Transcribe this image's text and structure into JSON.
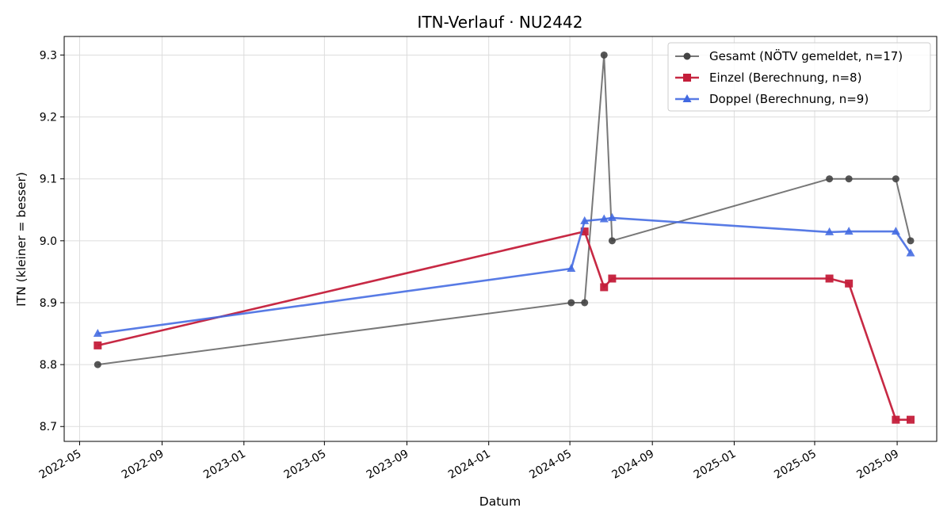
{
  "chart_data": {
    "type": "line",
    "title": "ITN-Verlauf · NU2442",
    "xlabel": "Datum",
    "ylabel": "ITN  (kleiner = besser)",
    "xlim": [
      "2022-04-08",
      "2025-10-30"
    ],
    "ylim": [
      8.676,
      9.33
    ],
    "x_ticks": [
      "2022-05",
      "2022-09",
      "2023-01",
      "2023-05",
      "2023-09",
      "2024-01",
      "2024-05",
      "2024-09",
      "2025-01",
      "2025-05",
      "2025-09"
    ],
    "y_ticks": [
      8.7,
      8.8,
      8.9,
      9.0,
      9.1,
      9.2,
      9.3
    ],
    "y_tick_labels": [
      "8.7",
      "8.8",
      "8.9",
      "9.0",
      "9.1",
      "9.2",
      "9.3"
    ],
    "grid": true,
    "legend_position": "top-right",
    "series": [
      {
        "name": "Gesamt (NÖTV gemeldet, n=17)",
        "color": "#444444",
        "marker": "circle",
        "points": [
          {
            "x": "2022-05-28",
            "y": 8.8
          },
          {
            "x": "2024-05-03",
            "y": 8.9
          },
          {
            "x": "2024-05-23",
            "y": 8.9
          },
          {
            "x": "2024-06-21",
            "y": 9.3
          },
          {
            "x": "2024-07-03",
            "y": 9.0
          },
          {
            "x": "2025-05-23",
            "y": 9.1
          },
          {
            "x": "2025-06-21",
            "y": 9.1
          },
          {
            "x": "2025-08-30",
            "y": 9.1
          },
          {
            "x": "2025-09-21",
            "y": 9.0
          }
        ]
      },
      {
        "name": "Einzel (Berechnung, n=8)",
        "color": "#c41e3a",
        "marker": "square",
        "points": [
          {
            "x": "2022-05-28",
            "y": 8.831
          },
          {
            "x": "2024-05-23",
            "y": 9.015
          },
          {
            "x": "2024-06-21",
            "y": 8.925
          },
          {
            "x": "2024-07-03",
            "y": 8.939
          },
          {
            "x": "2025-05-23",
            "y": 8.939
          },
          {
            "x": "2025-06-21",
            "y": 8.931
          },
          {
            "x": "2025-08-30",
            "y": 8.711
          },
          {
            "x": "2025-09-21",
            "y": 8.711
          }
        ]
      },
      {
        "name": "Doppel (Berechnung, n=9)",
        "color": "#4169e1",
        "marker": "triangle",
        "points": [
          {
            "x": "2022-05-28",
            "y": 8.85
          },
          {
            "x": "2024-05-03",
            "y": 8.955
          },
          {
            "x": "2024-05-23",
            "y": 9.032
          },
          {
            "x": "2024-06-21",
            "y": 9.035
          },
          {
            "x": "2024-07-03",
            "y": 9.037
          },
          {
            "x": "2025-05-23",
            "y": 9.014
          },
          {
            "x": "2025-06-21",
            "y": 9.015
          },
          {
            "x": "2025-08-30",
            "y": 9.015
          },
          {
            "x": "2025-09-21",
            "y": 8.98
          }
        ]
      }
    ]
  }
}
